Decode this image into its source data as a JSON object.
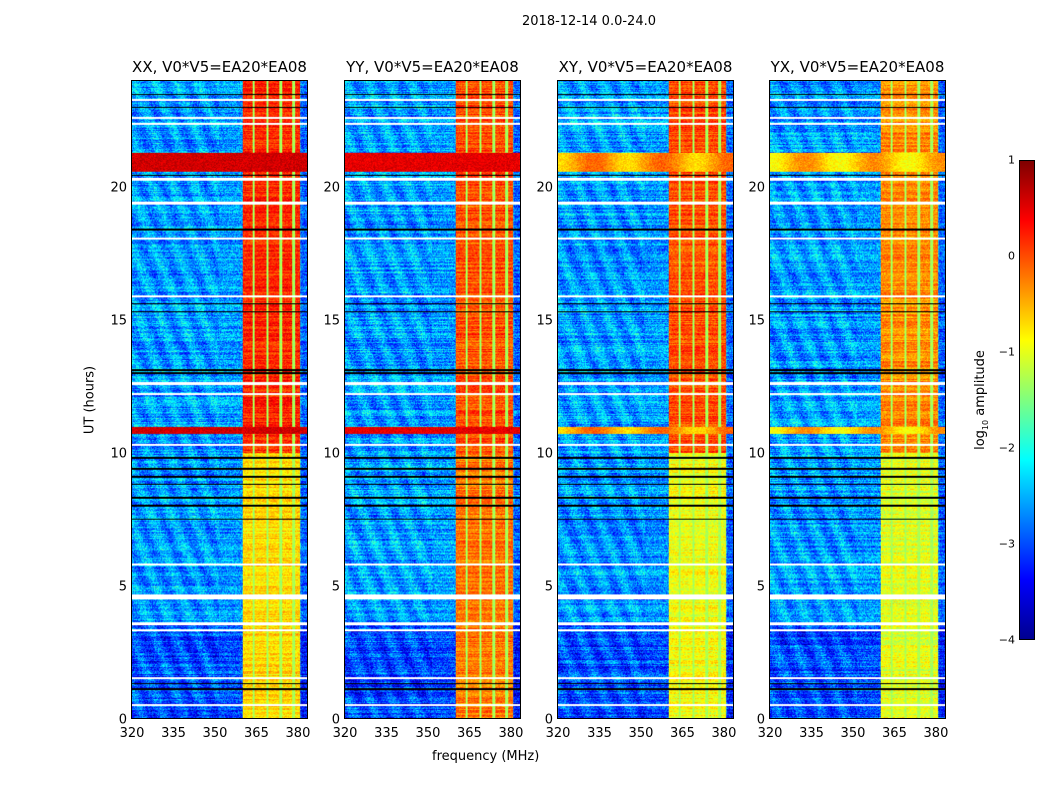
{
  "chart_data": {
    "type": "heatmap",
    "title": "2018-12-14 0.0-24.0",
    "xlabel": "frequency (MHz)",
    "ylabel": "UT (hours)",
    "xlim": [
      320,
      384
    ],
    "ylim": [
      0,
      24
    ],
    "xticks": [
      "320",
      "335",
      "350",
      "365",
      "380"
    ],
    "yticks": [
      "0",
      "5",
      "10",
      "15",
      "20"
    ],
    "panels": [
      {
        "title": "XX, V0*V5=EA20*EA08",
        "rfi_level_high": 0.2,
        "rfi_level_low": -0.7,
        "event_level": 0.6
      },
      {
        "title": "YY, V0*V5=EA20*EA08",
        "rfi_level_high": 0.0,
        "rfi_level_low": -0.2,
        "event_level": 0.5
      },
      {
        "title": "XY, V0*V5=EA20*EA08",
        "rfi_level_high": 0.0,
        "rfi_level_low": -0.9,
        "event_level": -0.4
      },
      {
        "title": "YX, V0*V5=EA20*EA08",
        "rfi_level_high": -0.3,
        "rfi_level_low": -1.0,
        "event_level": -0.6
      }
    ],
    "rfi_band_mhz": [
      360.5,
      381.5
    ],
    "rfi_gap_channels_mhz": [
      364.5,
      369.5,
      374.5,
      379.0
    ],
    "broadband_events_hours": [
      [
        20.6,
        21.3
      ],
      [
        10.7,
        10.95
      ]
    ],
    "flagged_rows_hours": [
      0.5,
      1.5,
      3.3,
      3.55,
      4.5,
      4.6,
      5.8,
      10.3,
      12.2,
      12.6,
      15.9,
      18.05,
      19.4,
      20.3,
      22.4,
      22.6,
      23.3
    ],
    "dark_rows_hours": [
      1.1,
      1.3,
      7.5,
      8.0,
      8.3,
      8.8,
      9.1,
      9.4,
      9.8,
      13.0,
      13.1,
      15.6,
      15.3,
      18.4,
      20.45,
      23.0,
      23.5
    ],
    "colorbar": {
      "label": "log10 amplitude",
      "range": [
        -4,
        1
      ],
      "ticks": [
        "1",
        "0",
        "−1",
        "−2",
        "−3",
        "−4"
      ],
      "colormap": "jet"
    }
  }
}
